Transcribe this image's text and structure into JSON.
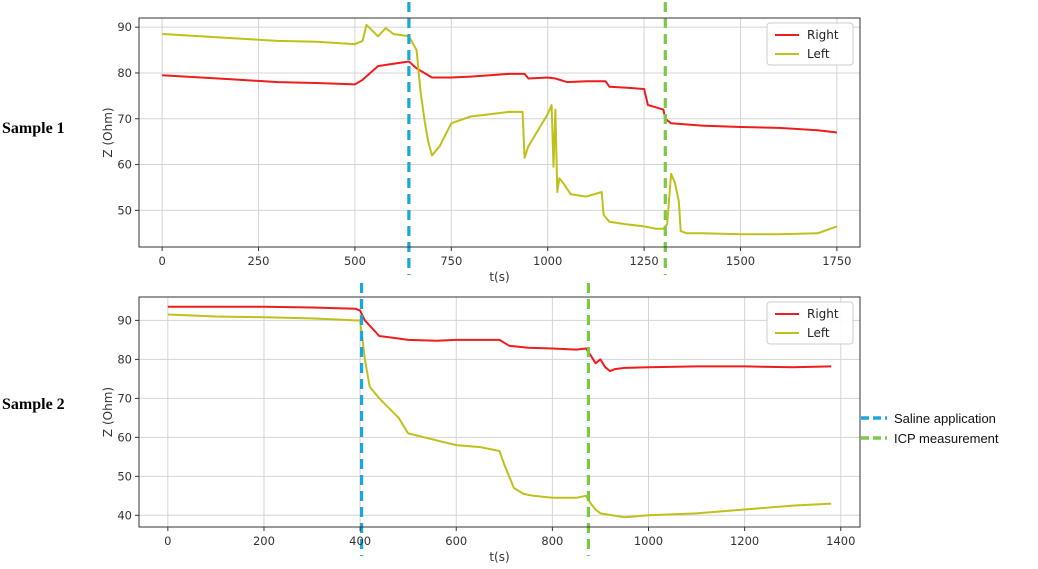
{
  "figure": {
    "sample_labels": [
      "Sample 1",
      "Sample 2"
    ],
    "legend": [
      {
        "label": "Saline application",
        "color": "#1aa7dd"
      },
      {
        "label": "ICP measurement",
        "color": "#7cc94a"
      }
    ]
  },
  "chart_data": [
    {
      "type": "line",
      "title": "",
      "xlabel": "t(s)",
      "ylabel": "Z (Ohm)",
      "xlim": [
        -60,
        1810
      ],
      "ylim": [
        42,
        92
      ],
      "xticks": [
        0,
        250,
        500,
        750,
        1000,
        1250,
        1500,
        1750
      ],
      "yticks": [
        50,
        60,
        70,
        80,
        90
      ],
      "grid": true,
      "legend_position": "top-right",
      "vlines": [
        {
          "x": 640,
          "color": "#1aa7dd",
          "name": "Saline application"
        },
        {
          "x": 1305,
          "color": "#7cc94a",
          "name": "ICP measurement"
        }
      ],
      "series": [
        {
          "name": "Right",
          "color": "#ee1c1c",
          "x": [
            0,
            100,
            200,
            300,
            400,
            500,
            520,
            560,
            600,
            640,
            660,
            700,
            750,
            800,
            850,
            900,
            940,
            950,
            1000,
            1020,
            1050,
            1100,
            1150,
            1160,
            1200,
            1250,
            1260,
            1280,
            1300,
            1305,
            1320,
            1400,
            1500,
            1600,
            1700,
            1750
          ],
          "y": [
            79.5,
            79,
            78.5,
            78,
            77.8,
            77.5,
            78.5,
            81.5,
            82,
            82.5,
            81,
            79,
            79,
            79.2,
            79.5,
            79.8,
            79.8,
            78.8,
            79,
            78.8,
            78,
            78.2,
            78.2,
            77,
            76.8,
            76.5,
            73,
            72.5,
            72,
            70,
            69,
            68.5,
            68.2,
            68,
            67.5,
            67
          ]
        },
        {
          "name": "Left",
          "color": "#bfc11b",
          "x": [
            0,
            100,
            200,
            300,
            400,
            500,
            520,
            530,
            560,
            580,
            600,
            640,
            660,
            670,
            680,
            690,
            700,
            720,
            750,
            800,
            850,
            900,
            935,
            940,
            950,
            1000,
            1010,
            1015,
            1020,
            1025,
            1030,
            1040,
            1060,
            1100,
            1140,
            1145,
            1160,
            1200,
            1250,
            1280,
            1300,
            1310,
            1320,
            1330,
            1340,
            1345,
            1360,
            1400,
            1500,
            1600,
            1700,
            1750
          ],
          "y": [
            88.5,
            88,
            87.5,
            87,
            86.8,
            86.3,
            87,
            90.5,
            88,
            89.8,
            88.5,
            88,
            85,
            76,
            70,
            65,
            62,
            64,
            69,
            70.5,
            71,
            71.5,
            71.5,
            61.5,
            64,
            71,
            73,
            59.5,
            72,
            54,
            57,
            56,
            53.5,
            53,
            54,
            49,
            47.5,
            47,
            46.5,
            46,
            46,
            47,
            58,
            56,
            52,
            45.5,
            45,
            45,
            44.8,
            44.8,
            45,
            46.5
          ]
        }
      ]
    },
    {
      "type": "line",
      "title": "",
      "xlabel": "t(s)",
      "ylabel": "Z (Ohm)",
      "xlim": [
        -60,
        1440
      ],
      "ylim": [
        37,
        96
      ],
      "xticks": [
        0,
        200,
        400,
        600,
        800,
        1000,
        1200,
        1400
      ],
      "yticks": [
        40,
        50,
        60,
        70,
        80,
        90
      ],
      "grid": true,
      "legend_position": "top-right",
      "vlines": [
        {
          "x": 403,
          "color": "#1aa7dd",
          "name": "Saline application"
        },
        {
          "x": 875,
          "color": "#7cc94a",
          "name": "ICP measurement"
        }
      ],
      "series": [
        {
          "name": "Right",
          "color": "#ee1c1c",
          "x": [
            0,
            100,
            200,
            300,
            390,
            400,
            410,
            440,
            470,
            500,
            560,
            600,
            650,
            690,
            710,
            750,
            800,
            850,
            870,
            880,
            890,
            900,
            910,
            920,
            930,
            950,
            1000,
            1100,
            1200,
            1300,
            1380
          ],
          "y": [
            93.5,
            93.5,
            93.5,
            93.3,
            93,
            92.5,
            90,
            86,
            85.5,
            85,
            84.8,
            85,
            85,
            85,
            83.5,
            83,
            82.8,
            82.5,
            82.8,
            81,
            79,
            80,
            78,
            77,
            77.5,
            77.8,
            78,
            78.2,
            78.2,
            78,
            78.2
          ]
        },
        {
          "name": "Left",
          "color": "#bfc11b",
          "x": [
            0,
            100,
            200,
            300,
            390,
            400,
            410,
            420,
            440,
            480,
            500,
            550,
            600,
            650,
            690,
            700,
            720,
            740,
            760,
            800,
            850,
            870,
            880,
            890,
            900,
            950,
            1000,
            1100,
            1200,
            1300,
            1380
          ],
          "y": [
            91.5,
            91,
            90.8,
            90.5,
            90,
            90,
            80,
            73,
            70,
            65,
            61,
            59.5,
            58,
            57.5,
            56.5,
            53,
            47,
            45.5,
            45,
            44.5,
            44.5,
            45,
            43,
            41.5,
            40.5,
            39.5,
            40,
            40.5,
            41.5,
            42.5,
            43
          ]
        }
      ]
    }
  ]
}
